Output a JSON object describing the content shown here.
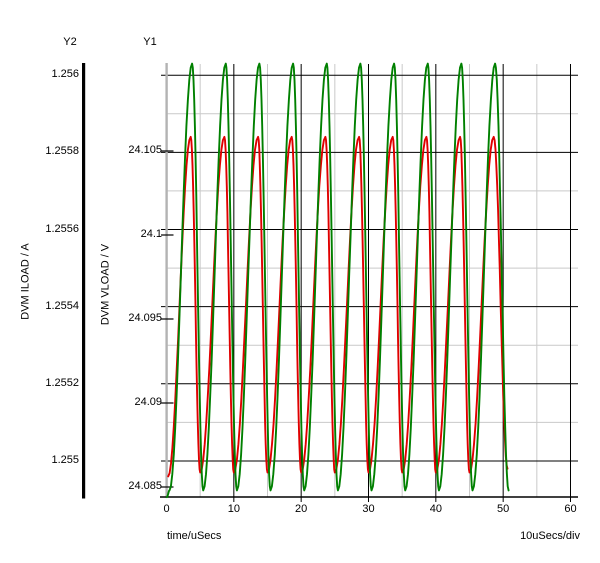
{
  "header": {
    "y2_title": "Y2",
    "y1_title": "Y1"
  },
  "axes": {
    "y2": {
      "title": "Y2",
      "label": "DVM ILOAD / A",
      "ticks": [
        {
          "label": "1.256",
          "value": 1.256
        },
        {
          "label": "1.2558",
          "value": 1.2558
        },
        {
          "label": "1.2556",
          "value": 1.2556
        },
        {
          "label": "1.2554",
          "value": 1.2554
        },
        {
          "label": "1.2552",
          "value": 1.2552
        },
        {
          "label": "1.255",
          "value": 1.255
        }
      ]
    },
    "y1": {
      "title": "Y1",
      "label": "DVM VLOAD / V",
      "ticks": [
        {
          "label": "24.105",
          "value": 24.105
        },
        {
          "label": "24.1",
          "value": 24.1
        },
        {
          "label": "24.095",
          "value": 24.095
        },
        {
          "label": "24.09",
          "value": 24.09
        },
        {
          "label": "24.085",
          "value": 24.085
        }
      ]
    },
    "x": {
      "label": "time/uSecs",
      "per_div": "10uSecs/div",
      "ticks": [
        {
          "label": "0",
          "value": 0
        },
        {
          "label": "10",
          "value": 10
        },
        {
          "label": "20",
          "value": 20
        },
        {
          "label": "30",
          "value": 30
        },
        {
          "label": "40",
          "value": 40
        },
        {
          "label": "50",
          "value": 50
        },
        {
          "label": "60",
          "value": 60
        }
      ],
      "range": [
        0,
        60
      ],
      "minor_step": 5
    }
  },
  "chart_data": {
    "type": "line",
    "title": "",
    "xlabel": "time/uSecs",
    "x_unit": "uSecs",
    "x_range": [
      0,
      60
    ],
    "x_per_div": "10uSecs/div",
    "grid": "major-black-minor-gray, major grid aligned to Y2 ticks and 10uSec columns",
    "y_axes": [
      {
        "id": "y1",
        "label": "DVM VLOAD / V",
        "tick_values": [
          24.105,
          24.1,
          24.095,
          24.09,
          24.085
        ]
      },
      {
        "id": "y2",
        "label": "DVM ILOAD / A",
        "tick_values": [
          1.256,
          1.2558,
          1.2556,
          1.2554,
          1.2552,
          1.255
        ]
      }
    ],
    "series": [
      {
        "name": "DVM ILOAD",
        "axis": "y2",
        "color": "#e00000",
        "period_uSecs": 5,
        "min": 1.25497,
        "max": 1.25584,
        "start": [
          0.25,
          1.25496
        ],
        "end": [
          50.65,
          1.25498
        ],
        "peak_times": [
          3.6,
          8.6,
          13.6,
          18.6,
          23.6,
          28.6,
          33.6,
          38.6,
          43.6,
          48.6
        ],
        "trough_times": [
          5,
          10,
          15,
          20,
          25,
          30,
          35,
          40,
          45
        ]
      },
      {
        "name": "DVM VLOAD",
        "axis": "y1",
        "color": "#008000",
        "period_uSecs": 5,
        "min": 24.0848,
        "max": 24.1102,
        "start": [
          0.05,
          24.0844
        ],
        "end": [
          50.8,
          24.0848
        ],
        "peak_times": [
          3.8,
          8.8,
          13.8,
          18.8,
          23.8,
          28.8,
          33.8,
          38.8,
          43.8,
          48.8
        ],
        "trough_times": [
          0.45,
          5.45,
          10.45,
          15.45,
          20.45,
          25.45,
          30.45,
          35.45,
          40.45,
          45.45
        ]
      }
    ]
  },
  "colors": {
    "vload_green": "#008000",
    "iload_red": "#e00000"
  }
}
